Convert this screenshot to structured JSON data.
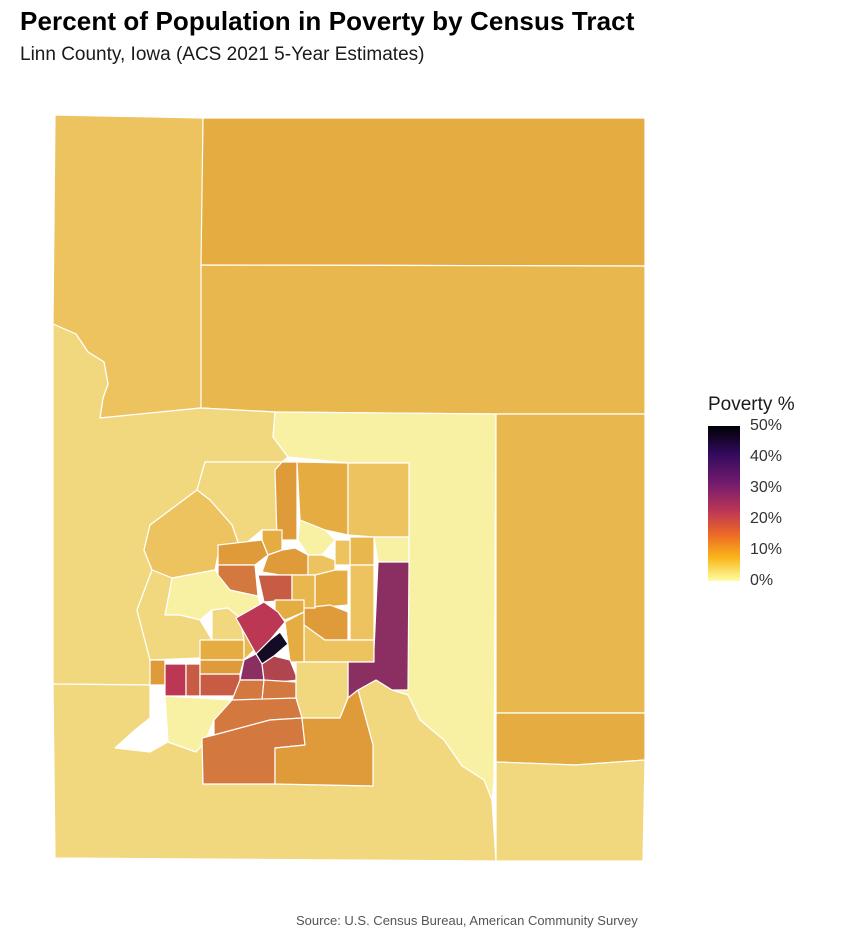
{
  "title": "Percent of Population in Poverty by Census Tract",
  "subtitle": "Linn County, Iowa (ACS 2021 5-Year Estimates)",
  "legend": {
    "title": "Poverty %",
    "labels": [
      "50%",
      "40%",
      "30%",
      "20%",
      "10%",
      "0%"
    ],
    "scale_min": 0,
    "scale_max": 50,
    "palette": [
      "#000004",
      "#320a5e",
      "#781c6d",
      "#bc3754",
      "#ed6925",
      "#fbb61a",
      "#fcffa4"
    ]
  },
  "caption": "Source: U.S. Census Bureau, American Community Survey",
  "colors": {
    "tract_border": "#ffffff",
    "very_low": "#f8f1a3",
    "low": "#f1d77e",
    "low_mid": "#ecc35f",
    "mid": "#e8b84f",
    "mid_high": "#e5ac42",
    "high": "#df9b3a",
    "higher": "#d3793f",
    "elevated": "#c85b43",
    "very_high": "#b0444f",
    "extreme": "#8b2f62",
    "max": "#140b24"
  }
}
